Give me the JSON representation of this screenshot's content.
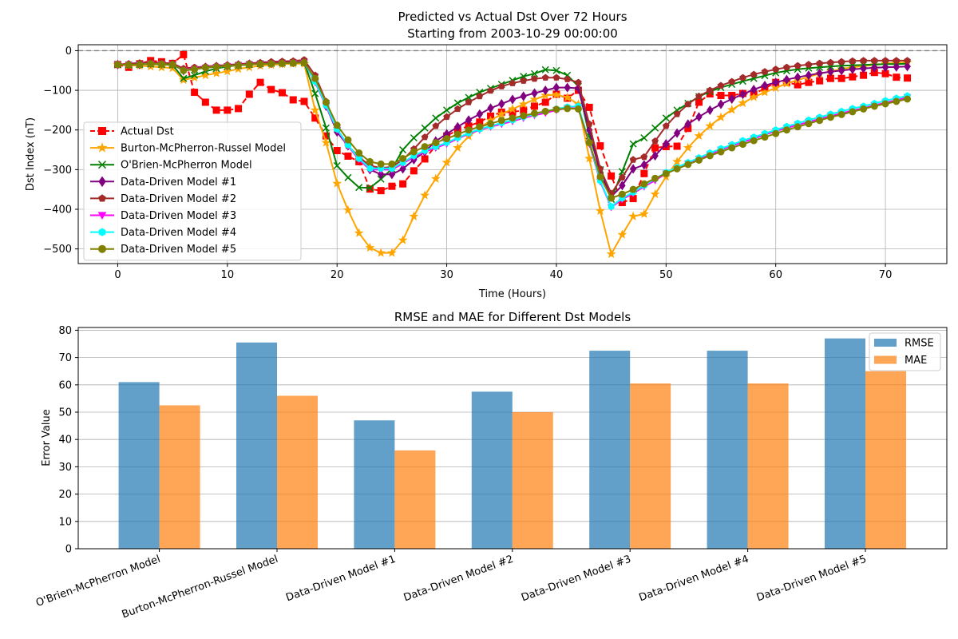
{
  "colors": {
    "actual": "#ff0000",
    "burton": "#ffa500",
    "obrien": "#008000",
    "dd1": "#800080",
    "dd2": "#a52a2a",
    "dd3": "#ff00ff",
    "dd4": "#00ffff",
    "dd5": "#808000",
    "rmse": "#1f77b4",
    "mae": "#ff7f0e",
    "grid": "#b0b0b0",
    "zero_line": "#808080"
  },
  "chart_data": [
    {
      "type": "line",
      "title": "Predicted vs Actual Dst Over 72 Hours",
      "subtitle": "Starting from 2003-10-29 00:00:00",
      "xlabel": "Time (Hours)",
      "ylabel": "Dst Index (nT)",
      "xlim": [
        -3.6,
        75.6
      ],
      "ylim": [
        -537,
        15
      ],
      "xticks": [
        0,
        10,
        20,
        30,
        40,
        50,
        60,
        70
      ],
      "yticks": [
        0,
        -100,
        -200,
        -300,
        -400,
        -500
      ],
      "grid": true,
      "reference_line": 0,
      "legend_position": "center-left",
      "x": [
        0,
        1,
        2,
        3,
        4,
        5,
        6,
        7,
        8,
        9,
        10,
        11,
        12,
        13,
        14,
        15,
        16,
        17,
        18,
        19,
        20,
        21,
        22,
        23,
        24,
        25,
        26,
        27,
        28,
        29,
        30,
        31,
        32,
        33,
        34,
        35,
        36,
        37,
        38,
        39,
        40,
        41,
        42,
        43,
        44,
        45,
        46,
        47,
        48,
        49,
        50,
        51,
        52,
        53,
        54,
        55,
        56,
        57,
        58,
        59,
        60,
        61,
        62,
        63,
        64,
        65,
        66,
        67,
        68,
        69,
        70,
        71,
        72
      ],
      "series": [
        {
          "name": "Actual Dst",
          "key": "actual",
          "marker": "square",
          "dashed": true,
          "values": [
            -35,
            -42,
            -33,
            -25,
            -28,
            -32,
            -10,
            -105,
            -130,
            -150,
            -150,
            -146,
            -110,
            -80,
            -98,
            -106,
            -124,
            -128,
            -170,
            -215,
            -252,
            -266,
            -280,
            -349,
            -353,
            -342,
            -336,
            -303,
            -273,
            -240,
            -215,
            -200,
            -190,
            -180,
            -165,
            -155,
            -155,
            -150,
            -140,
            -130,
            -110,
            -120,
            -100,
            -143,
            -240,
            -316,
            -383,
            -373,
            -310,
            -245,
            -242,
            -241,
            -196,
            -130,
            -109,
            -113,
            -113,
            -108,
            -110,
            -95,
            -80,
            -80,
            -86,
            -80,
            -76,
            -70,
            -70,
            -66,
            -62,
            -55,
            -58,
            -67,
            -69
          ]
        },
        {
          "name": "Burton-McPherron-Russel Model",
          "key": "burton",
          "marker": "star",
          "dashed": false,
          "values": [
            -35,
            -37,
            -38,
            -40,
            -42,
            -44,
            -74,
            -68,
            -62,
            -57,
            -52,
            -46,
            -42,
            -38,
            -36,
            -34,
            -33,
            -33,
            -150,
            -232,
            -335,
            -402,
            -460,
            -497,
            -510,
            -510,
            -478,
            -418,
            -365,
            -323,
            -282,
            -245,
            -216,
            -195,
            -176,
            -160,
            -147,
            -135,
            -123,
            -113,
            -111,
            -118,
            -135,
            -272,
            -404,
            -513,
            -464,
            -418,
            -412,
            -362,
            -318,
            -280,
            -245,
            -215,
            -190,
            -168,
            -149,
            -132,
            -117,
            -105,
            -94,
            -83,
            -74,
            -66,
            -58,
            -52,
            -46,
            -42,
            -39,
            -36,
            -33,
            -31,
            -30
          ]
        },
        {
          "name": "O'Brien-McPherron Model",
          "key": "obrien",
          "marker": "x",
          "dashed": false,
          "values": [
            -35,
            -36,
            -35,
            -34,
            -35,
            -36,
            -70,
            -62,
            -52,
            -45,
            -40,
            -37,
            -35,
            -33,
            -32,
            -31,
            -30,
            -30,
            -108,
            -195,
            -290,
            -320,
            -345,
            -346,
            -324,
            -298,
            -250,
            -220,
            -195,
            -170,
            -150,
            -132,
            -118,
            -105,
            -95,
            -85,
            -75,
            -65,
            -58,
            -48,
            -50,
            -62,
            -90,
            -215,
            -300,
            -375,
            -305,
            -235,
            -220,
            -195,
            -170,
            -150,
            -133,
            -116,
            -103,
            -93,
            -85,
            -77,
            -70,
            -63,
            -56,
            -51,
            -47,
            -44,
            -42,
            -40,
            -38,
            -37,
            -36,
            -35,
            -34,
            -34,
            -33
          ]
        },
        {
          "name": "Data-Driven Model #1",
          "key": "dd1",
          "marker": "diamond",
          "dashed": false,
          "values": [
            -35,
            -36,
            -35,
            -32,
            -33,
            -34,
            -50,
            -46,
            -42,
            -40,
            -38,
            -36,
            -34,
            -33,
            -32,
            -31,
            -30,
            -28,
            -75,
            -140,
            -205,
            -240,
            -268,
            -300,
            -312,
            -312,
            -298,
            -275,
            -255,
            -228,
            -210,
            -192,
            -175,
            -160,
            -145,
            -134,
            -123,
            -115,
            -107,
            -100,
            -93,
            -93,
            -95,
            -200,
            -310,
            -368,
            -340,
            -298,
            -288,
            -265,
            -235,
            -208,
            -185,
            -167,
            -150,
            -135,
            -122,
            -110,
            -98,
            -88,
            -80,
            -73,
            -67,
            -62,
            -57,
            -53,
            -50,
            -47,
            -45,
            -43,
            -42,
            -41,
            -40
          ]
        },
        {
          "name": "Data-Driven Model #2",
          "key": "dd2",
          "marker": "pentagon",
          "dashed": false,
          "values": [
            -35,
            -33,
            -31,
            -30,
            -31,
            -32,
            -45,
            -42,
            -40,
            -38,
            -36,
            -34,
            -32,
            -30,
            -28,
            -27,
            -26,
            -23,
            -62,
            -128,
            -198,
            -240,
            -268,
            -290,
            -296,
            -293,
            -275,
            -248,
            -218,
            -190,
            -167,
            -147,
            -130,
            -115,
            -101,
            -90,
            -82,
            -76,
            -71,
            -68,
            -68,
            -72,
            -80,
            -185,
            -298,
            -360,
            -320,
            -275,
            -268,
            -228,
            -190,
            -160,
            -135,
            -115,
            -100,
            -88,
            -78,
            -68,
            -60,
            -53,
            -47,
            -42,
            -38,
            -35,
            -32,
            -30,
            -28,
            -26,
            -25,
            -25,
            -25,
            -25,
            -25
          ]
        },
        {
          "name": "Data-Driven Model #3",
          "key": "dd3",
          "marker": "triangle-down",
          "dashed": false,
          "values": [
            -35,
            -36,
            -35,
            -33,
            -34,
            -35,
            -50,
            -47,
            -43,
            -41,
            -39,
            -37,
            -35,
            -34,
            -33,
            -32,
            -31,
            -30,
            -80,
            -140,
            -200,
            -240,
            -275,
            -300,
            -300,
            -300,
            -285,
            -268,
            -255,
            -245,
            -235,
            -222,
            -210,
            -200,
            -192,
            -185,
            -178,
            -170,
            -163,
            -157,
            -150,
            -145,
            -145,
            -235,
            -330,
            -395,
            -375,
            -360,
            -343,
            -327,
            -310,
            -297,
            -285,
            -273,
            -262,
            -250,
            -240,
            -231,
            -222,
            -212,
            -203,
            -195,
            -187,
            -180,
            -172,
            -165,
            -158,
            -151,
            -145,
            -138,
            -131,
            -125,
            -118
          ]
        },
        {
          "name": "Data-Driven Model #4",
          "key": "dd4",
          "marker": "hexagon",
          "dashed": false,
          "values": [
            -35,
            -36,
            -35,
            -33,
            -34,
            -35,
            -50,
            -47,
            -43,
            -41,
            -39,
            -37,
            -35,
            -34,
            -33,
            -32,
            -31,
            -30,
            -78,
            -138,
            -198,
            -238,
            -272,
            -297,
            -297,
            -297,
            -282,
            -265,
            -252,
            -242,
            -232,
            -220,
            -208,
            -198,
            -190,
            -182,
            -175,
            -167,
            -160,
            -153,
            -147,
            -142,
            -140,
            -232,
            -328,
            -393,
            -372,
            -357,
            -340,
            -323,
            -307,
            -294,
            -282,
            -270,
            -258,
            -247,
            -237,
            -227,
            -218,
            -209,
            -200,
            -191,
            -183,
            -175,
            -168,
            -160,
            -153,
            -146,
            -140,
            -133,
            -126,
            -120,
            -114
          ]
        },
        {
          "name": "Data-Driven Model #5",
          "key": "dd5",
          "marker": "circle",
          "dashed": false,
          "values": [
            -35,
            -36,
            -35,
            -33,
            -34,
            -35,
            -50,
            -47,
            -43,
            -41,
            -39,
            -37,
            -35,
            -34,
            -33,
            -32,
            -31,
            -30,
            -70,
            -130,
            -188,
            -225,
            -258,
            -280,
            -286,
            -286,
            -272,
            -255,
            -242,
            -232,
            -222,
            -211,
            -200,
            -192,
            -184,
            -176,
            -170,
            -164,
            -158,
            -153,
            -148,
            -146,
            -147,
            -232,
            -318,
            -372,
            -362,
            -350,
            -336,
            -322,
            -310,
            -298,
            -287,
            -276,
            -265,
            -255,
            -245,
            -236,
            -227,
            -218,
            -209,
            -200,
            -192,
            -184,
            -176,
            -168,
            -161,
            -154,
            -147,
            -140,
            -134,
            -128,
            -122
          ]
        }
      ]
    },
    {
      "type": "bar",
      "title": "RMSE and MAE for Different Dst Models",
      "xlabel": "",
      "ylabel": "Error Value",
      "ylim": [
        0,
        81
      ],
      "yticks": [
        0,
        10,
        20,
        30,
        40,
        50,
        60,
        70,
        80
      ],
      "grid": true,
      "legend_position": "top-right",
      "categories": [
        "O'Brien-McPherron Model",
        "Burton-McPherron-Russel Model",
        "Data-Driven Model #1",
        "Data-Driven Model #2",
        "Data-Driven Model #3",
        "Data-Driven Model #4",
        "Data-Driven Model #5"
      ],
      "series": [
        {
          "name": "RMSE",
          "key": "rmse",
          "values": [
            61,
            75.5,
            47,
            57.5,
            72.5,
            72.5,
            77
          ]
        },
        {
          "name": "MAE",
          "key": "mae",
          "values": [
            52.5,
            56,
            36,
            50,
            60.5,
            60.5,
            65
          ]
        }
      ]
    }
  ]
}
